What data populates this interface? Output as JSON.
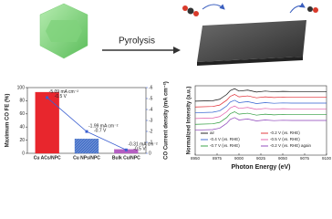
{
  "scheme": {
    "step": "Pyrolysis"
  },
  "chart_data": [
    {
      "type": "bar",
      "categories": [
        "Cu ACs/NPC",
        "Cu NPs/NPC",
        "Bulk Cu/NPC"
      ],
      "values": [
        93,
        22,
        6
      ],
      "colors": [
        "#e8262d",
        "#4a74c9",
        "#b55fc2"
      ],
      "ylabel": "Maximum CO FE (%)",
      "ylim": [
        0,
        100
      ],
      "yticks": [
        0,
        20,
        40,
        60,
        80,
        100
      ],
      "y2label": "CO Current density (mA cm⁻²)",
      "y2lim": [
        0,
        -6
      ],
      "y2ticks": [
        0,
        -1,
        -2,
        -3,
        -4,
        -5,
        -6
      ],
      "y2color": "#3b5fd0",
      "series": [
        {
          "axis": "y2",
          "color": "#3b5fd0",
          "values": [
            -5.09,
            -1.99,
            -0.31
          ],
          "value_labels": [
            "-5.09 mA cm⁻²",
            "-1.99 mA cm⁻²",
            "-0.31 mA cm⁻²"
          ]
        }
      ],
      "annotations": [
        "-0.5 V",
        "-0.7 V",
        "-0.5 V"
      ]
    },
    {
      "type": "line",
      "xlabel": "Photon Energy (eV)",
      "ylabel": "Normalized Intensity (a.u.)",
      "x": [
        8950,
        8970,
        8978,
        8982,
        8986,
        8990,
        8995,
        9000,
        9010,
        9020,
        9030,
        9040,
        9050,
        9060,
        9070,
        9080,
        9090,
        9100
      ],
      "xlim": [
        8950,
        9100
      ],
      "xticks": [
        8950,
        8975,
        9000,
        9025,
        9050,
        9075,
        9100
      ],
      "ylim": [
        -2.6,
        4.6
      ],
      "series": [
        {
          "name": "air",
          "color": "#111111",
          "values": [
            3,
            3.05,
            3.2,
            3.45,
            3.7,
            4.1,
            4.3,
            4.05,
            4.15,
            3.95,
            4.05,
            3.98,
            4.02,
            4,
            4,
            4,
            4,
            4
          ]
        },
        {
          "name": "-0.2 V (vs. RHE)",
          "color": "#e0262d",
          "values": [
            2.4,
            2.45,
            2.6,
            2.85,
            3.1,
            3.5,
            3.7,
            3.45,
            3.55,
            3.35,
            3.45,
            3.38,
            3.42,
            3.4,
            3.4,
            3.4,
            3.4,
            3.4
          ]
        },
        {
          "name": "-0.4 V (vs. RHE)",
          "color": "#2f5fd0",
          "values": [
            1.8,
            1.85,
            2,
            2.25,
            2.5,
            2.9,
            3.1,
            2.85,
            2.95,
            2.75,
            2.85,
            2.78,
            2.82,
            2.8,
            2.8,
            2.8,
            2.8,
            2.8
          ]
        },
        {
          "name": "-0.5 V (vs. RHE)",
          "color": "#e05aa8",
          "values": [
            1.2,
            1.25,
            1.4,
            1.65,
            1.9,
            2.3,
            2.5,
            2.25,
            2.35,
            2.15,
            2.25,
            2.18,
            2.22,
            2.2,
            2.2,
            2.2,
            2.2,
            2.2
          ]
        },
        {
          "name": "-0.7 V (vs. RHE)",
          "color": "#2a9a3a",
          "values": [
            0.6,
            0.65,
            0.8,
            1.05,
            1.3,
            1.7,
            1.9,
            1.65,
            1.75,
            1.55,
            1.65,
            1.58,
            1.62,
            1.6,
            1.6,
            1.6,
            1.6,
            1.6
          ]
        },
        {
          "name": "-0.2 V (vs. RHE) again",
          "color": "#8a3fb8",
          "values": [
            0,
            0.05,
            0.2,
            0.45,
            0.7,
            1.1,
            1.3,
            1.05,
            1.15,
            0.95,
            1.05,
            0.98,
            1.02,
            1,
            1,
            1,
            1,
            1
          ]
        }
      ]
    }
  ]
}
